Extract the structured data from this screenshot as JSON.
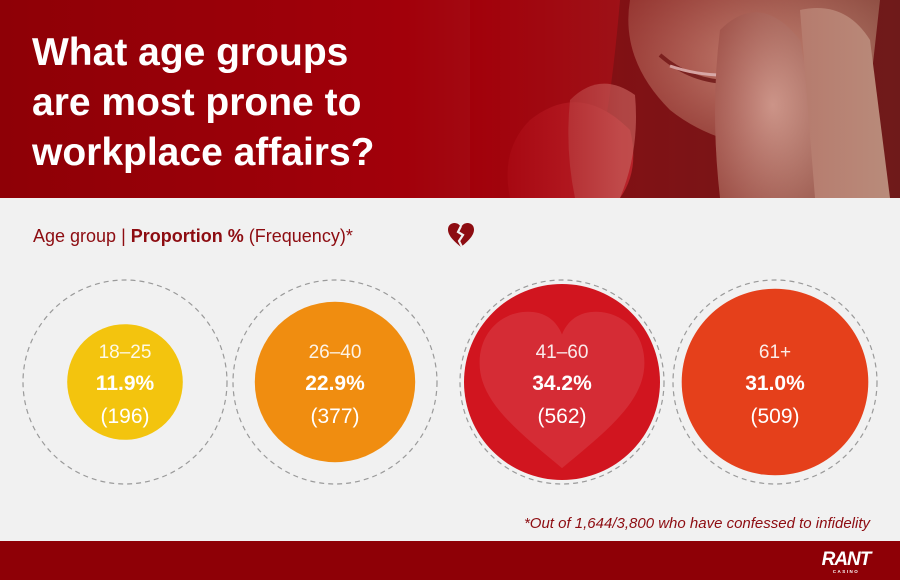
{
  "title": {
    "line1": "What age groups",
    "line2": "are most prone to",
    "line3": "workplace affairs?"
  },
  "subtitle": {
    "age_label": "Age group |",
    "proportion_label": "Proportion %",
    "frequency_label": "(Frequency)*",
    "icon": "broken-heart-icon"
  },
  "chart_data": {
    "type": "bubble",
    "categories": [
      "18–25",
      "26–40",
      "41–60",
      "61+"
    ],
    "values": [
      11.9,
      22.9,
      34.2,
      31.0
    ],
    "value_labels": [
      "11.9%",
      "22.9%",
      "34.2%",
      "31.0%"
    ],
    "frequencies": [
      196,
      377,
      562,
      509
    ],
    "frequency_labels": [
      "(196)",
      "(377)",
      "(562)",
      "(509)"
    ],
    "colors": [
      "#f3c40e",
      "#f08d10",
      "#d1151f",
      "#e5401b"
    ],
    "unit": "%"
  },
  "footnote": "*Out of 1,644/3,800 who have confessed to infidelity",
  "footer": {
    "logo_text": "RANT",
    "logo_subtext": "CASINO"
  },
  "colors": {
    "brand_red": "#8e0006",
    "text_red": "#8d0c11",
    "background": "#f1f1f1"
  }
}
